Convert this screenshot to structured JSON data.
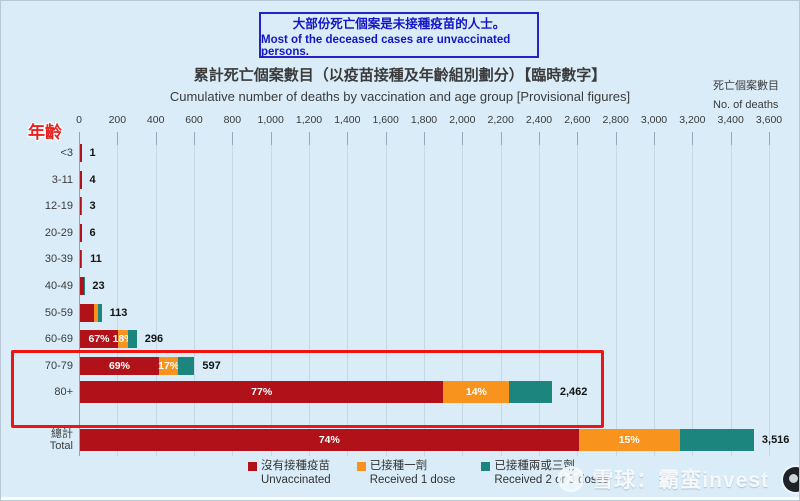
{
  "note_box": {
    "line1_zh": "大部份死亡個案是未接種疫苗的人士。",
    "line2_en": "Most of the deceased cases are unvaccinated persons."
  },
  "title": {
    "zh": "累計死亡個案數目（以疫苗接種及年齡組別劃分）【臨時數字】",
    "en": "Cumulative number of deaths by vaccination and age group [Provisional figures]"
  },
  "right_axis_label": {
    "zh": "死亡個案數目",
    "en": "No. of deaths"
  },
  "age_axis_label": "年齡",
  "colors": {
    "background": "#d9ecf8",
    "highlight_box": "#ee1410",
    "note_border": "#2323c8",
    "note_text": "#1515c8",
    "series": {
      "unvaccinated": "#b11118",
      "one_dose": "#f8941e",
      "two_three_doses": "#1c857d"
    }
  },
  "legend": [
    {
      "key": "unvaccinated",
      "zh": "沒有接種疫苗",
      "en": "Unvaccinated"
    },
    {
      "key": "one_dose",
      "zh": "已接種一劑",
      "en": "Received 1 dose"
    },
    {
      "key": "two_three_doses",
      "zh": "已接種兩或三劑",
      "en": "Received 2 or 3 doses"
    }
  ],
  "watermark": {
    "text": "雪球：霸蛮invest",
    "logo": "xueqiu-snowball-logo"
  },
  "chart_data": {
    "type": "bar",
    "orientation": "horizontal",
    "title": "累計死亡個案數目（以疫苗接種及年齡組別劃分）【臨時數字】",
    "subtitle": "Cumulative number of deaths by vaccination and age group [Provisional figures]",
    "xlabel": "死亡個案數目 / No. of deaths",
    "ylabel": "年齡 / Age",
    "xlim": [
      0,
      3600
    ],
    "x_tick_step": 200,
    "x_tick_labels": [
      "0",
      "200",
      "400",
      "600",
      "800",
      "1,000",
      "1,200",
      "1,400",
      "1,600",
      "1,800",
      "2,000",
      "2,200",
      "2,400",
      "2,600",
      "2,800",
      "3,000",
      "3,200",
      "3,400",
      "3,600"
    ],
    "grid": true,
    "series_keys": [
      "unvaccinated",
      "one_dose",
      "two_three_doses"
    ],
    "highlighted_rows": [
      "70-79",
      "80+"
    ],
    "rows": [
      {
        "label": "<3",
        "total": 1,
        "total_label": "1",
        "pct": {
          "unvaccinated": 100,
          "one_dose": 0,
          "two_three_doses": 0
        },
        "pct_labels": {}
      },
      {
        "label": "3-11",
        "total": 4,
        "total_label": "4",
        "pct": {
          "unvaccinated": 100,
          "one_dose": 0,
          "two_three_doses": 0
        },
        "pct_labels": {}
      },
      {
        "label": "12-19",
        "total": 3,
        "total_label": "3",
        "pct": {
          "unvaccinated": 60,
          "one_dose": 0,
          "two_three_doses": 40
        },
        "pct_labels": {}
      },
      {
        "label": "20-29",
        "total": 6,
        "total_label": "6",
        "pct": {
          "unvaccinated": 100,
          "one_dose": 0,
          "two_three_doses": 0
        },
        "pct_labels": {}
      },
      {
        "label": "30-39",
        "total": 11,
        "total_label": "11",
        "pct": {
          "unvaccinated": 70,
          "one_dose": 0,
          "two_three_doses": 30
        },
        "pct_labels": {}
      },
      {
        "label": "40-49",
        "total": 23,
        "total_label": "23",
        "pct": {
          "unvaccinated": 85,
          "one_dose": 0,
          "two_three_doses": 15
        },
        "pct_labels": {}
      },
      {
        "label": "50-59",
        "total": 113,
        "total_label": "113",
        "pct": {
          "unvaccinated": 66,
          "one_dose": 17,
          "two_three_doses": 17
        },
        "pct_labels": {}
      },
      {
        "label": "60-69",
        "total": 296,
        "total_label": "296",
        "pct": {
          "unvaccinated": 67,
          "one_dose": 18,
          "two_three_doses": 15
        },
        "pct_labels": {
          "unvaccinated": "67%",
          "one_dose": "18%"
        }
      },
      {
        "label": "70-79",
        "total": 597,
        "total_label": "597",
        "pct": {
          "unvaccinated": 69,
          "one_dose": 17,
          "two_three_doses": 14
        },
        "pct_labels": {
          "unvaccinated": "69%",
          "one_dose": "17%"
        },
        "highlight": true
      },
      {
        "label": "80+",
        "total": 2462,
        "total_label": "2,462",
        "pct": {
          "unvaccinated": 77,
          "one_dose": 14,
          "two_three_doses": 9
        },
        "pct_labels": {
          "unvaccinated": "77%",
          "one_dose": "14%"
        },
        "highlight": true
      },
      {
        "label": "總計",
        "label2": "Total",
        "is_total": true,
        "total": 3516,
        "total_label": "3,516",
        "pct": {
          "unvaccinated": 74,
          "one_dose": 15,
          "two_three_doses": 11
        },
        "pct_labels": {
          "unvaccinated": "74%",
          "one_dose": "15%"
        }
      }
    ]
  }
}
